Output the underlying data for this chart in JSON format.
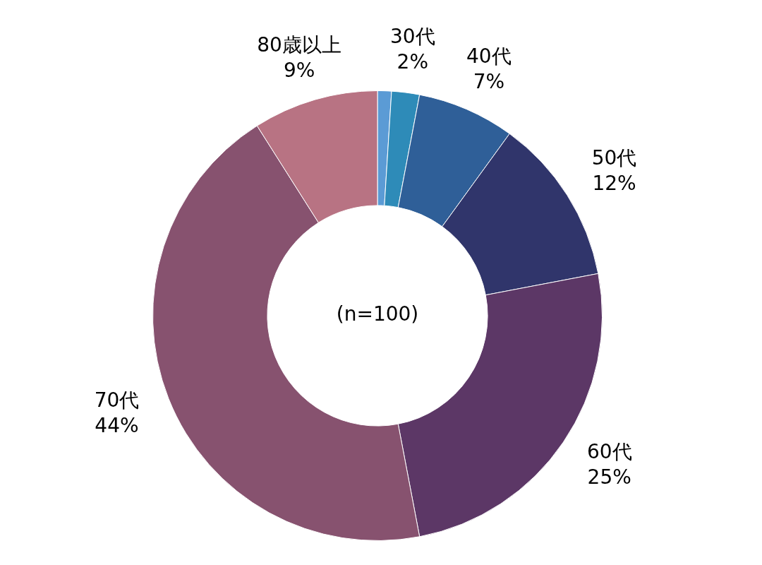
{
  "chart_data": {
    "type": "donut",
    "categories": [
      null,
      "30代",
      "40代",
      "50代",
      "60代",
      "70代",
      "80歳以上"
    ],
    "values": [
      1,
      2,
      7,
      12,
      25,
      44,
      9
    ],
    "value_labels": [
      null,
      "2%",
      "7%",
      "12%",
      "25%",
      "44%",
      "9%"
    ],
    "colors": [
      "#5b9bd5",
      "#2e8bb8",
      "#2f5f98",
      "#30356b",
      "#5c3766",
      "#87526f",
      "#b87383"
    ],
    "annotations": [
      "(n=100)"
    ],
    "legend": false
  }
}
